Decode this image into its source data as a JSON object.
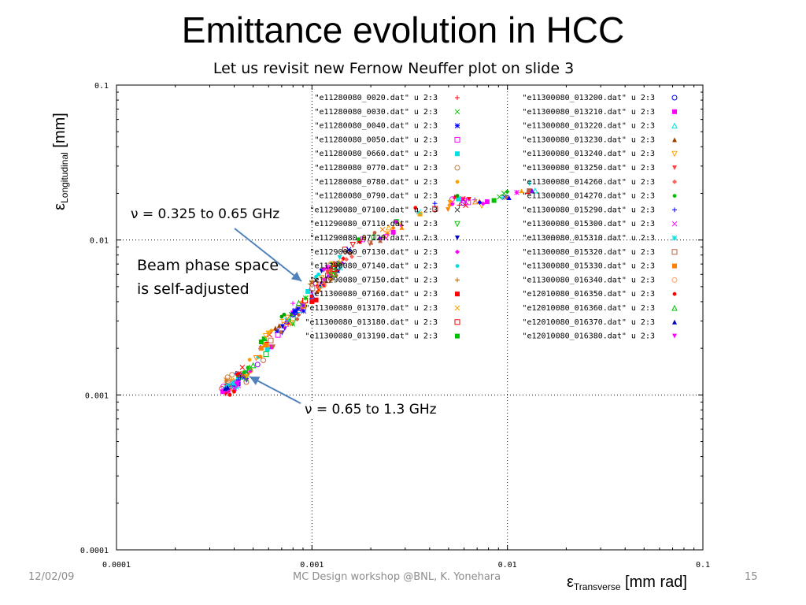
{
  "slide": {
    "title": "Emittance evolution in HCC",
    "subtitle": "Let us revisit new Fernow Neuffer plot on slide 3",
    "annotations": {
      "upper_freq": "ν = 0.325 to 0.65 GHz",
      "beam_line1": "Beam phase space",
      "beam_line2": "is self-adjusted",
      "lower_freq": "ν = 0.65 to 1.3 GHz"
    },
    "footer": {
      "date": "12/02/09",
      "center": "MC Design workshop @BNL, K. Yonehara",
      "page": "15"
    }
  },
  "chart_data": {
    "type": "scatter",
    "x_scale": "log",
    "y_scale": "log",
    "xlim": [
      0.0001,
      0.1
    ],
    "ylim": [
      0.0001,
      0.1
    ],
    "grid": "dotted",
    "x_ticks": [
      "0.0001",
      "0.001",
      "0.01",
      "0.1"
    ],
    "y_ticks": [
      "0.0001",
      "0.001",
      "0.01",
      "0.1"
    ],
    "xlabel": {
      "symbol": "ε",
      "sub": "Transverse",
      "unit": " [mm rad]"
    },
    "ylabel": {
      "symbol": "ε",
      "sub": "Longitudinal",
      "unit": " [mm]"
    },
    "legend_position": "top",
    "series": [
      {
        "name": "\"e11280080_0020.dat\" u 2:3",
        "color": "#ff0000",
        "marker": "+",
        "points": [
          [
            0.00037,
            0.00105
          ],
          [
            0.00038,
            0.0011
          ]
        ]
      },
      {
        "name": "\"e11280080_0030.dat\" u 2:3",
        "color": "#00c000",
        "marker": "x",
        "points": [
          [
            0.0091,
            0.019
          ],
          [
            0.0096,
            0.02
          ]
        ]
      },
      {
        "name": "\"e11280080_0040.dat\" u 2:3",
        "color": "#0000ff",
        "marker": "*",
        "points": [
          [
            0.00082,
            0.0035
          ],
          [
            0.00085,
            0.0036
          ]
        ]
      },
      {
        "name": "\"e11280080_0050.dat\" u 2:3",
        "color": "#ff00ff",
        "marker": "sq",
        "points": [
          [
            0.006,
            0.018
          ],
          [
            0.0063,
            0.0175
          ]
        ]
      },
      {
        "name": "\"e11280080_0660.dat\" u 2:3",
        "color": "#00e0e0",
        "marker": "fsq",
        "points": [
          [
            0.0004,
            0.0012
          ],
          [
            0.00042,
            0.00125
          ]
        ]
      },
      {
        "name": "\"e11280080_0770.dat\" u 2:3",
        "color": "#c08040",
        "marker": "o",
        "points": [
          [
            0.00037,
            0.0013
          ],
          [
            0.00039,
            0.00135
          ]
        ]
      },
      {
        "name": "\"e11280080_0780.dat\" u 2:3",
        "color": "#ffa000",
        "marker": "dot",
        "points": [
          [
            0.0006,
            0.0025
          ],
          [
            0.00062,
            0.0026
          ]
        ]
      },
      {
        "name": "\"e11280080_0790.dat\" u 2:3",
        "color": "#00a000",
        "marker": "dot",
        "points": [
          [
            0.0007,
            0.0032
          ],
          [
            0.00072,
            0.0033
          ]
        ]
      },
      {
        "name": "\"e11290080_07100.dat\" u 2:3",
        "color": "#404040",
        "marker": "x",
        "points": [
          [
            0.001,
            0.0053
          ],
          [
            0.00105,
            0.0055
          ]
        ]
      },
      {
        "name": "\"e11290080_07110.dat\" u 2:3",
        "color": "#00c000",
        "marker": "dtri",
        "points": [
          [
            0.00125,
            0.006
          ],
          [
            0.0013,
            0.0062
          ]
        ]
      },
      {
        "name": "\"e11290080_07120.dat\" u 2:3",
        "color": "#0000c0",
        "marker": "fdtri",
        "points": [
          [
            0.00112,
            0.0063
          ],
          [
            0.00115,
            0.0064
          ]
        ]
      },
      {
        "name": "\"e11290080_07130.dat\" u 2:3",
        "color": "#ff00ff",
        "marker": "dia",
        "points": [
          [
            0.00115,
            0.0065
          ],
          [
            0.0012,
            0.0066
          ]
        ]
      },
      {
        "name": "\"e11290080_07140.dat\" u 2:3",
        "color": "#00e0e0",
        "marker": "dot",
        "points": [
          [
            0.00105,
            0.0058
          ],
          [
            0.00108,
            0.006
          ]
        ]
      },
      {
        "name": "\"e11290080_07150.dat\" u 2:3",
        "color": "#c06000",
        "marker": "+",
        "points": [
          [
            0.00098,
            0.0052
          ],
          [
            0.001,
            0.0054
          ]
        ]
      },
      {
        "name": "\"e11300080_07160.dat\" u 2:3",
        "color": "#ff0000",
        "marker": "fsq",
        "points": [
          [
            0.001,
            0.004
          ],
          [
            0.00105,
            0.0041
          ]
        ]
      },
      {
        "name": "\"e11300080_013170.dat\" u 2:3",
        "color": "#ffa000",
        "marker": "x",
        "points": [
          [
            0.0013,
            0.007
          ],
          [
            0.0014,
            0.0072
          ]
        ]
      },
      {
        "name": "\"e11300080_013180.dat\" u 2:3",
        "color": "#ff0000",
        "marker": "sq",
        "points": [
          [
            0.0013,
            0.0065
          ],
          [
            0.00135,
            0.0066
          ]
        ]
      },
      {
        "name": "\"e11300080_013190.dat\" u 2:3",
        "color": "#00c000",
        "marker": "fsq",
        "points": [
          [
            0.00055,
            0.0022
          ],
          [
            0.00057,
            0.0023
          ]
        ]
      },
      {
        "name": "\"e11300080_013200.dat\" u 2:3",
        "color": "#0000ff",
        "marker": "o",
        "points": [
          [
            0.0008,
            0.0033
          ],
          [
            0.00082,
            0.0034
          ]
        ]
      },
      {
        "name": "\"e11300080_013210.dat\" u 2:3",
        "color": "#ff00ff",
        "marker": "fsq",
        "points": [
          [
            0.00035,
            0.00105
          ],
          [
            0.00036,
            0.00108
          ]
        ]
      },
      {
        "name": "\"e11300080_013220.dat\" u 2:3",
        "color": "#00e0e0",
        "marker": "tri",
        "points": [
          [
            0.00038,
            0.00115
          ],
          [
            0.0004,
            0.0012
          ]
        ]
      },
      {
        "name": "\"e11300080_013230.dat\" u 2:3",
        "color": "#a04000",
        "marker": "ftri",
        "points": [
          [
            0.00065,
            0.0027
          ],
          [
            0.00068,
            0.0028
          ]
        ]
      },
      {
        "name": "\"e11300080_013240.dat\" u 2:3",
        "color": "#ffa000",
        "marker": "dtri",
        "points": [
          [
            0.00058,
            0.0024
          ],
          [
            0.0006,
            0.0025
          ]
        ]
      },
      {
        "name": "\"e11300080_013250.dat\" u 2:3",
        "color": "#ff4040",
        "marker": "fdtri",
        "points": [
          [
            0.0012,
            0.0062
          ],
          [
            0.00125,
            0.0063
          ]
        ]
      },
      {
        "name": "\"e11300080_014260.dat\" u 2:3",
        "color": "#ff6060",
        "marker": "dia",
        "points": [
          [
            0.0015,
            0.0075
          ],
          [
            0.0016,
            0.0078
          ]
        ]
      },
      {
        "name": "\"e11300080_014270.dat\" u 2:3",
        "color": "#00c000",
        "marker": "dot",
        "points": [
          [
            0.00045,
            0.0014
          ],
          [
            0.00047,
            0.0015
          ]
        ]
      },
      {
        "name": "\"e11300080_015290.dat\" u 2:3",
        "color": "#0000ff",
        "marker": "+",
        "points": [
          [
            0.00042,
            0.00125
          ],
          [
            0.00043,
            0.0013
          ]
        ]
      },
      {
        "name": "\"e11300080_015300.dat\" u 2:3",
        "color": "#ff00ff",
        "marker": "x",
        "points": [
          [
            0.0004,
            0.0011
          ],
          [
            0.00042,
            0.00115
          ]
        ]
      },
      {
        "name": "\"e11300080_015310.dat\" u 2:3",
        "color": "#00e0e0",
        "marker": "*",
        "points": [
          [
            0.00036,
            0.0011
          ],
          [
            0.00037,
            0.00115
          ]
        ]
      },
      {
        "name": "\"e11300080_015320.dat\" u 2:3",
        "color": "#c06040",
        "marker": "sq",
        "points": [
          [
            0.0012,
            0.0055
          ],
          [
            0.00125,
            0.0057
          ]
        ]
      },
      {
        "name": "\"e11300080_015330.dat\" u 2:3",
        "color": "#ff8000",
        "marker": "fsq",
        "points": [
          [
            0.00055,
            0.002
          ],
          [
            0.00058,
            0.0021
          ]
        ]
      },
      {
        "name": "\"e11300080_016340.dat\" u 2:3",
        "color": "#ffa060",
        "marker": "o",
        "points": [
          [
            0.0011,
            0.005
          ],
          [
            0.00115,
            0.0051
          ]
        ]
      },
      {
        "name": "\"e12010080_016350.dat\" u 2:3",
        "color": "#ff0000",
        "marker": "dot",
        "points": [
          [
            0.00038,
            0.001
          ],
          [
            0.0004,
            0.00105
          ]
        ]
      },
      {
        "name": "\"e12010080_016360.dat\" u 2:3",
        "color": "#00c000",
        "marker": "tri",
        "points": [
          [
            0.00048,
            0.0015
          ],
          [
            0.0005,
            0.00155
          ]
        ]
      },
      {
        "name": "\"e12010080_016370.dat\" u 2:3",
        "color": "#0000c0",
        "marker": "ftri",
        "points": [
          [
            0.00036,
            0.0011
          ],
          [
            0.00037,
            0.00112
          ]
        ]
      },
      {
        "name": "\"e12010080_016380.dat\" u 2:3",
        "color": "#ff00ff",
        "marker": "fdtri",
        "points": [
          [
            0.00041,
            0.00118
          ],
          [
            0.00042,
            0.0012
          ]
        ]
      }
    ],
    "trend_cloud": {
      "color_cycle": [
        "#ff0000",
        "#00c000",
        "#0000ff",
        "#ff00ff",
        "#00e0e0",
        "#ffa000",
        "#c06040",
        "#8000ff",
        "#ff8000"
      ],
      "segments": [
        {
          "from": [
            0.00034,
            0.00105
          ],
          "to": [
            0.00045,
            0.00135
          ],
          "count": 40
        },
        {
          "from": [
            0.00045,
            0.00135
          ],
          "to": [
            0.0009,
            0.004
          ],
          "count": 60
        },
        {
          "from": [
            0.00095,
            0.004
          ],
          "to": [
            0.0014,
            0.0075
          ],
          "count": 45
        },
        {
          "from": [
            0.0014,
            0.008
          ],
          "to": [
            0.003,
            0.013
          ],
          "count": 30
        },
        {
          "from": [
            0.0035,
            0.015
          ],
          "to": [
            0.007,
            0.019
          ],
          "count": 20
        },
        {
          "from": [
            0.007,
            0.0175
          ],
          "to": [
            0.0135,
            0.022
          ],
          "count": 20
        }
      ]
    }
  }
}
